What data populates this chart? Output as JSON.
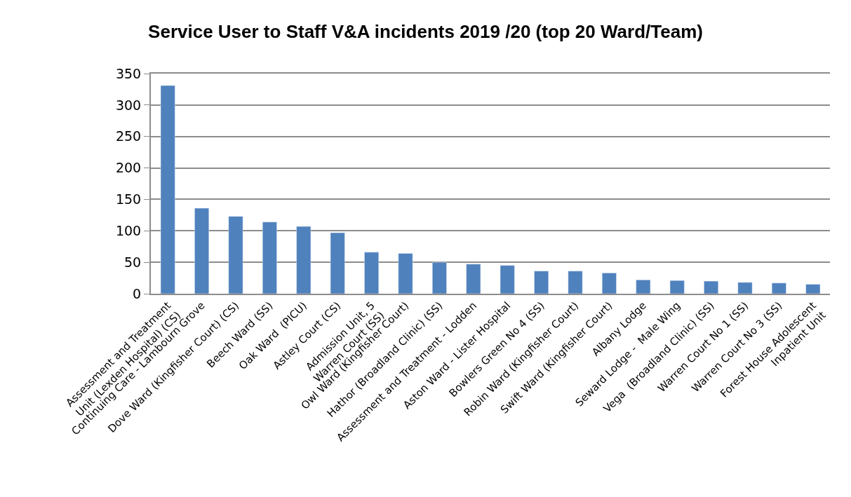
{
  "chart_data": {
    "type": "bar",
    "title": "Service User to Staff V&A incidents 2019 /20 (top 20 Ward/Team)",
    "categories": [
      "Assessment and Treatment Unit (Lexden Hospital) (CS)",
      "Continuing Care - Lambourn Grove",
      "Dove Ward (Kingfisher Court) (CS)",
      "Beech Ward (SS)",
      "Oak Ward  (PICU)",
      "Astley Court (CS)",
      "Admission Unit, 5 Warren Court (SS)",
      "Owl Ward (Kingfisher Court)",
      "Hathor (Broadland Clinic) (SS)",
      "Assessment and Treatment - Lodden",
      "Aston Ward - Lister Hospital",
      "Bowlers Green No 4 (SS)",
      "Robin Ward (Kingfisher Court)",
      "Swift Ward (Kingfisher Court)",
      "Albany Lodge",
      "Seward Lodge -  Male Wing",
      "Vega  (Broadland Clinic) (SS)",
      "Warren Court No 1 (SS)",
      "Warren Court No 3 (SS)",
      "Forest House Adolescent Inpatient Unit"
    ],
    "values": [
      331,
      136,
      123,
      114,
      107,
      97,
      66,
      64,
      50,
      47,
      45,
      36,
      36,
      33,
      22,
      21,
      20,
      18,
      17,
      15
    ],
    "color": "#4f81bd",
    "ylim": [
      0,
      350
    ],
    "yticks": [
      0,
      50,
      100,
      150,
      200,
      250,
      300,
      350
    ],
    "grid": "y"
  }
}
